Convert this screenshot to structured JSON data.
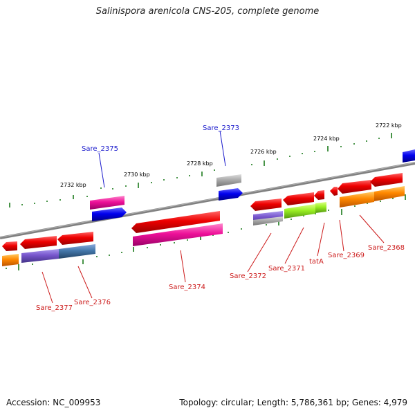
{
  "title": "Salinispora arenicola CNS-205, complete genome",
  "footer": {
    "accession": "Accession: NC_009953",
    "summary": "Topology: circular; Length: 5,786,361 bp; Genes: 4,979"
  },
  "ticks": [
    "2732 kbp",
    "2730 kbp",
    "2728 kbp",
    "2726 kbp",
    "2724 kbp",
    "2722 kbp"
  ],
  "gene_labels": {
    "top": [
      "Sare_2375",
      "Sare_2373"
    ],
    "bottom": [
      "Sare_2377",
      "Sare_2376",
      "Sare_2374",
      "Sare_2372",
      "Sare_2371",
      "tatA",
      "Sare_2369",
      "Sare_2368"
    ]
  },
  "colors": {
    "backbone": "#808080",
    "tick_dots": "#1a7a1a",
    "label_blue": "#1a1acc",
    "label_red": "#cc1a1a",
    "gene_red": "#ee0000",
    "gene_pink": "#ee1199",
    "gene_blue": "#0000ee",
    "gene_gray": "#aaaaaa",
    "gene_orange": "#ff8800",
    "gene_purple": "#7755cc",
    "gene_steel": "#4477aa",
    "gene_lime": "#99ee22"
  }
}
